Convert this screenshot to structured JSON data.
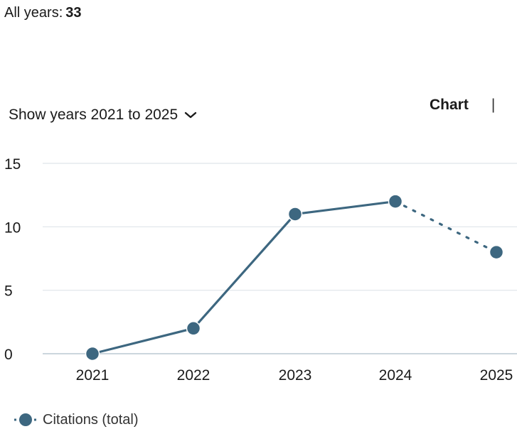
{
  "summary": {
    "label": "All years:",
    "value": "33"
  },
  "controls": {
    "year_range_label": "Show years 2021 to 2025",
    "chart_tab": "Chart",
    "separator": "|"
  },
  "colors": {
    "series": "#3d6780",
    "grid": "#dfe5e9",
    "baseline": "#bcc9d2"
  },
  "chart_data": {
    "type": "line",
    "title": "",
    "xlabel": "",
    "ylabel": "",
    "categories": [
      "2021",
      "2022",
      "2023",
      "2024",
      "2025"
    ],
    "ylim": [
      0,
      15
    ],
    "yticks": [
      "0",
      "5",
      "10",
      "15"
    ],
    "grid": true,
    "legend_position": "bottom-left",
    "series": [
      {
        "name": "Citations (total)",
        "values": [
          0,
          2,
          11,
          12,
          8
        ],
        "dotted_last_segment": true
      }
    ]
  }
}
